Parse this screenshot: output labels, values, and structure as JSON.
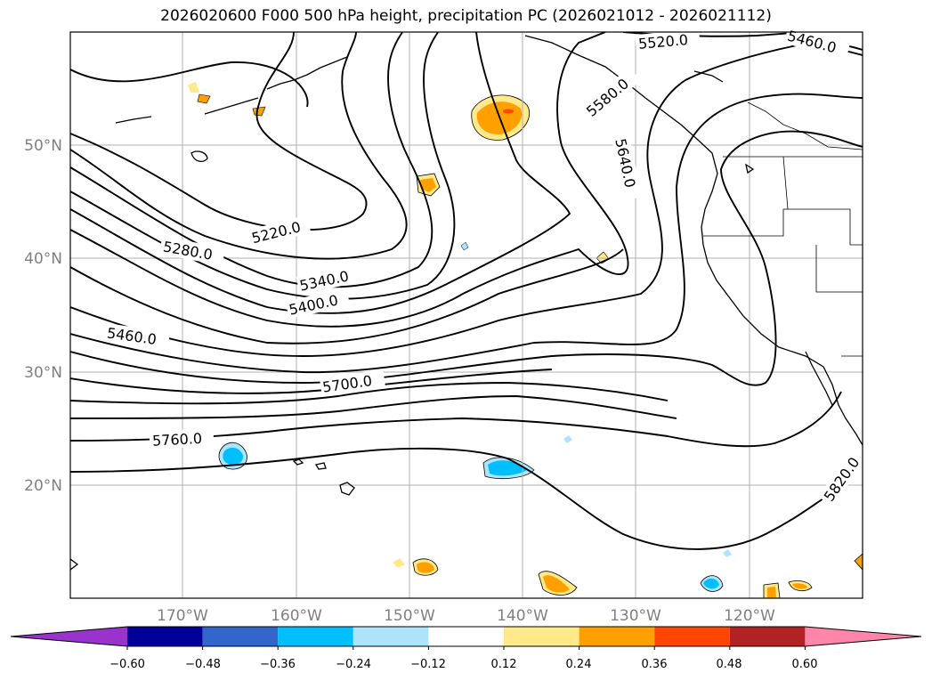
{
  "title": "2026020600 F000 500 hPa height, precipitation PC (2026021012 - 2026021112)",
  "map": {
    "lat_labels": [
      "50°N",
      "40°N",
      "30°N",
      "20°N"
    ],
    "lon_labels": [
      "170°W",
      "160°W",
      "150°W",
      "140°W",
      "130°W",
      "120°W"
    ],
    "extent": {
      "lon_min": -180,
      "lon_max": -110,
      "lat_min": 10,
      "lat_max": 60
    },
    "contour_labels": [
      "5220.0",
      "5280.0",
      "5340.0",
      "5400.0",
      "5460.0",
      "5520.0",
      "5580.0",
      "5640.0",
      "5700.0",
      "5760.0",
      "5820.0",
      "5460.0"
    ],
    "contour_color": "#000000",
    "grid": true
  },
  "colorbar": {
    "ticks": [
      "−0.60",
      "−0.48",
      "−0.36",
      "−0.24",
      "−0.12",
      "0.12",
      "0.24",
      "0.36",
      "0.48",
      "0.60"
    ],
    "colors": [
      "#9933cc",
      "#000099",
      "#3366cc",
      "#00bfff",
      "#aee4fb",
      "#ffffff",
      "#ffe98a",
      "#ffa000",
      "#ff4500",
      "#b22222",
      "#ff85aa",
      "#ff85aa"
    ]
  }
}
